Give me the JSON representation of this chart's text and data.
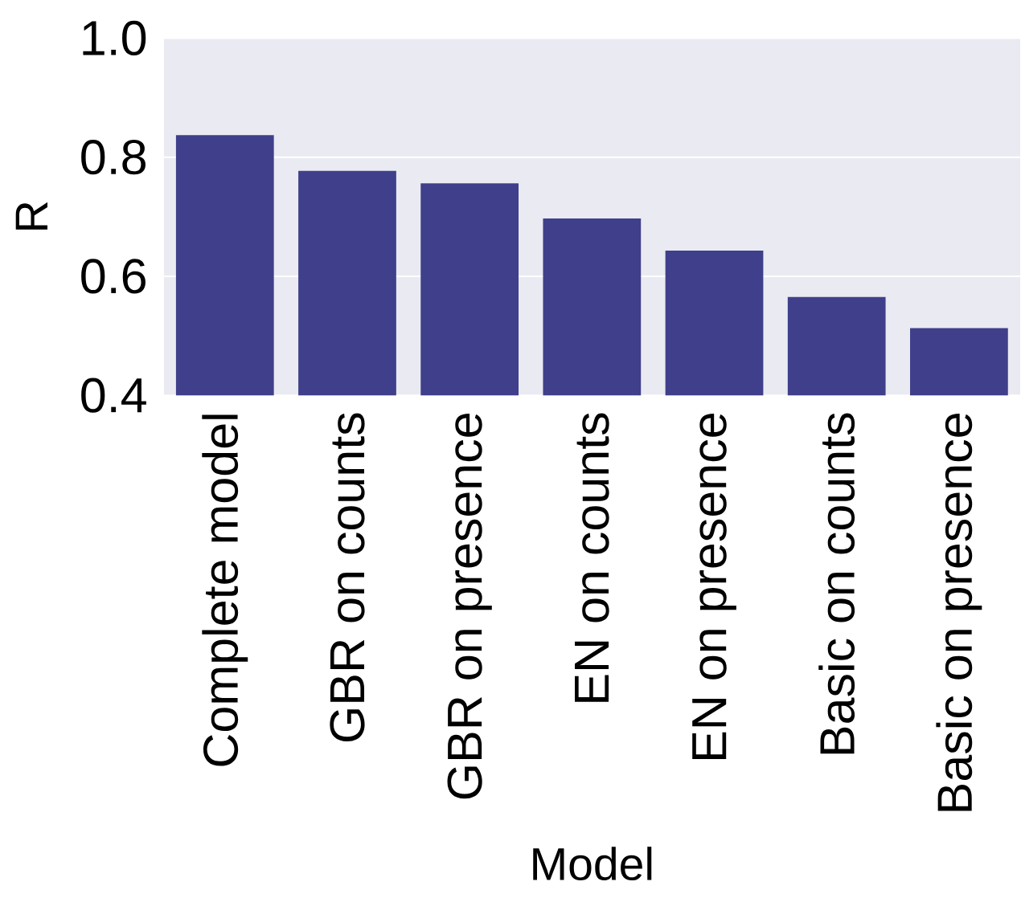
{
  "chart_data": {
    "type": "bar",
    "xlabel": "Model",
    "ylabel": "R",
    "categories": [
      "Complete model",
      "GBR on counts",
      "GBR on presence",
      "EN on counts",
      "EN on presence",
      "Basic on counts",
      "Basic on presence"
    ],
    "values": [
      0.837,
      0.777,
      0.756,
      0.697,
      0.643,
      0.565,
      0.513
    ],
    "color": "#3f3f8b",
    "ylim": [
      0.4,
      1.0
    ],
    "yticks": [
      {
        "value": 0.4,
        "label": "0.4"
      },
      {
        "value": 0.6,
        "label": "0.6"
      },
      {
        "value": 0.8,
        "label": "0.8"
      },
      {
        "value": 1.0,
        "label": "1.0"
      }
    ],
    "grid": "y"
  }
}
